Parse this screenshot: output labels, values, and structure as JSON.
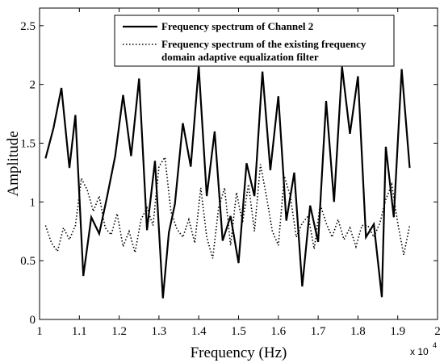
{
  "chart_data": {
    "type": "line",
    "xlabel": "Frequency (Hz)",
    "ylabel": "Amplitude",
    "xlim": [
      1,
      2
    ],
    "ylim": [
      0,
      2.65
    ],
    "x_ticks": [
      1,
      1.1,
      1.2,
      1.3,
      1.4,
      1.5,
      1.6,
      1.7,
      1.8,
      1.9,
      2
    ],
    "x_tick_labels": [
      "1",
      "1.1",
      "1.2",
      "1.3",
      "1.4",
      "1.5",
      "1.6",
      "1.7",
      "1.8",
      "1.9",
      "2"
    ],
    "y_ticks": [
      0,
      0.5,
      1,
      1.5,
      2,
      2.5
    ],
    "y_tick_labels": [
      "0",
      "0.5",
      "1",
      "1.5",
      "2",
      "2.5"
    ],
    "x_multiplier_base": "x 10",
    "x_multiplier_exp": "4",
    "grid": false,
    "legend_position": "top-center",
    "series": [
      {
        "name": "Frequency spectrum of Channel 2",
        "style": "solid",
        "color": "#000000",
        "x": [
          1.015,
          1.035,
          1.055,
          1.075,
          1.09,
          1.11,
          1.13,
          1.15,
          1.17,
          1.19,
          1.21,
          1.23,
          1.25,
          1.27,
          1.29,
          1.31,
          1.325,
          1.34,
          1.36,
          1.38,
          1.4,
          1.42,
          1.44,
          1.46,
          1.48,
          1.5,
          1.52,
          1.54,
          1.56,
          1.58,
          1.6,
          1.62,
          1.64,
          1.66,
          1.68,
          1.7,
          1.72,
          1.74,
          1.76,
          1.78,
          1.8,
          1.82,
          1.84,
          1.86,
          1.87,
          1.89,
          1.91,
          1.93
        ],
        "y": [
          1.37,
          1.63,
          1.97,
          1.29,
          1.74,
          0.37,
          0.87,
          0.73,
          1.05,
          1.39,
          1.91,
          1.39,
          2.05,
          0.76,
          1.35,
          0.18,
          0.74,
          0.98,
          1.67,
          1.3,
          2.15,
          1.05,
          1.6,
          0.67,
          0.88,
          0.48,
          1.33,
          1.05,
          2.11,
          1.27,
          1.9,
          0.84,
          1.25,
          0.28,
          0.97,
          0.66,
          1.86,
          1.0,
          2.15,
          1.58,
          2.07,
          0.7,
          0.81,
          0.19,
          1.47,
          0.87,
          2.13,
          1.29
        ]
      },
      {
        "name": "Frequency spectrum of the existing frequency domain adaptive equalization filter",
        "style": "dotted",
        "color": "#000000",
        "x": [
          1.015,
          1.03,
          1.045,
          1.06,
          1.075,
          1.09,
          1.105,
          1.12,
          1.135,
          1.15,
          1.165,
          1.18,
          1.195,
          1.21,
          1.225,
          1.24,
          1.255,
          1.27,
          1.285,
          1.3,
          1.315,
          1.33,
          1.345,
          1.36,
          1.375,
          1.39,
          1.405,
          1.42,
          1.435,
          1.45,
          1.465,
          1.48,
          1.495,
          1.51,
          1.525,
          1.54,
          1.555,
          1.57,
          1.585,
          1.6,
          1.615,
          1.63,
          1.645,
          1.66,
          1.675,
          1.69,
          1.705,
          1.72,
          1.735,
          1.75,
          1.765,
          1.78,
          1.795,
          1.81,
          1.825,
          1.84,
          1.855,
          1.87,
          1.885,
          1.9,
          1.915,
          1.93
        ],
        "y": [
          0.8,
          0.65,
          0.58,
          0.78,
          0.68,
          0.8,
          1.2,
          1.1,
          0.92,
          1.05,
          0.78,
          0.72,
          0.9,
          0.62,
          0.75,
          0.57,
          0.85,
          0.95,
          0.8,
          1.3,
          1.38,
          0.92,
          0.77,
          0.7,
          0.85,
          0.65,
          1.12,
          0.7,
          0.52,
          0.95,
          1.12,
          0.63,
          1.08,
          0.82,
          1.15,
          0.75,
          1.32,
          1.05,
          0.75,
          0.63,
          1.22,
          1.05,
          0.7,
          0.82,
          0.88,
          0.6,
          0.98,
          0.82,
          0.7,
          0.85,
          0.68,
          0.78,
          0.62,
          0.8,
          0.8,
          0.7,
          0.82,
          1.02,
          1.15,
          0.82,
          0.55,
          0.8
        ]
      }
    ]
  }
}
